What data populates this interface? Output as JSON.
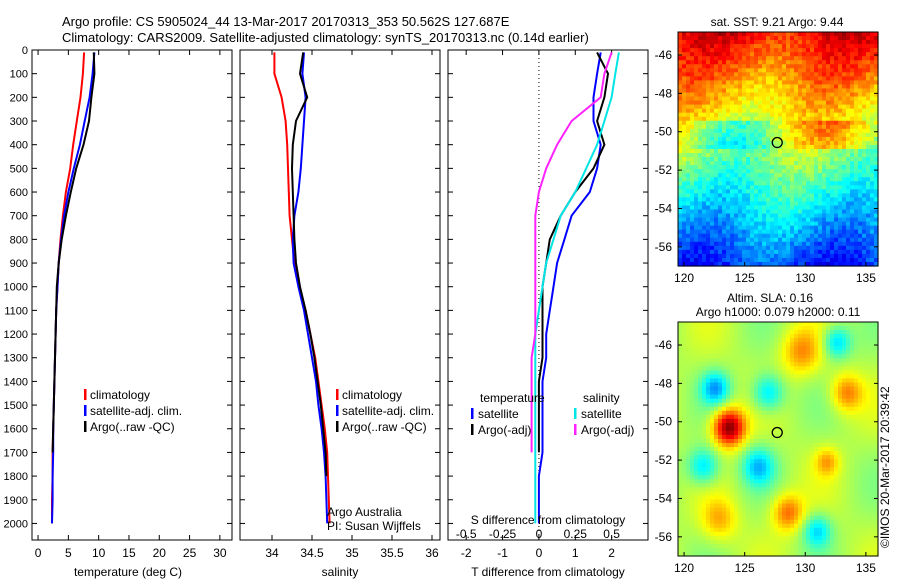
{
  "header": {
    "line1": "Argo profile: CS 5905024_44 13-Mar-2017 20170313_353 50.562S 127.687E",
    "line2": "Climatology: CARS2009. Satellite-adjusted climatology: synTS_20170313.nc (0.14d earlier)"
  },
  "colors": {
    "climatology": "#ff0000",
    "satellite": "#0000ff",
    "argo": "#000000",
    "satellite_salinity": "#00e5e5",
    "argo_salinity_adj": "#ff22ff",
    "map_marker": "#000000"
  },
  "chart_data": [
    {
      "type": "line",
      "id": "temperature",
      "xlabel": "temperature (deg C)",
      "ylabel": "",
      "xlim": [
        -1,
        32
      ],
      "ylim": [
        2070,
        0
      ],
      "xticks": [
        0,
        5,
        10,
        15,
        20,
        25,
        30
      ],
      "yticks": [
        0,
        100,
        200,
        300,
        400,
        500,
        600,
        700,
        800,
        900,
        1000,
        1100,
        1200,
        1300,
        1400,
        1500,
        1600,
        1700,
        1800,
        1900,
        2000
      ],
      "legend": [
        "climatology",
        "satellite-adj. clim.",
        "Argo(..raw -QC)"
      ],
      "series": [
        {
          "name": "climatology",
          "color": "red",
          "x": [
            7.6,
            7.4,
            7.0,
            6.4,
            5.8,
            5.3,
            4.6,
            4.1,
            3.7,
            3.4,
            3.2,
            3.0,
            2.9,
            2.8,
            2.7,
            2.6,
            2.5,
            2.4,
            2.4,
            2.3,
            2.3
          ],
          "y": [
            10,
            100,
            200,
            300,
            400,
            500,
            600,
            700,
            800,
            900,
            1000,
            1100,
            1200,
            1300,
            1400,
            1500,
            1600,
            1700,
            1800,
            1900,
            2000
          ]
        },
        {
          "name": "satellite-adj. clim.",
          "color": "blue",
          "x": [
            9.3,
            9.0,
            8.5,
            7.7,
            6.9,
            5.9,
            5.0,
            4.3,
            3.8,
            3.4,
            3.2,
            3.0,
            2.9,
            2.8,
            2.7,
            2.6,
            2.5,
            2.5,
            2.4,
            2.4,
            2.3
          ],
          "y": [
            10,
            100,
            200,
            300,
            400,
            500,
            600,
            700,
            800,
            900,
            1000,
            1100,
            1200,
            1300,
            1400,
            1500,
            1600,
            1700,
            1800,
            1900,
            2000
          ]
        },
        {
          "name": "Argo(..raw -QC)",
          "color": "black",
          "x": [
            9.2,
            9.3,
            8.8,
            8.4,
            7.5,
            6.3,
            5.4,
            4.6,
            3.9,
            3.4,
            3.1,
            3.0,
            2.9,
            2.8,
            2.7,
            2.6,
            2.5,
            2.4
          ],
          "y": [
            10,
            100,
            200,
            300,
            400,
            500,
            600,
            700,
            800,
            900,
            1000,
            1100,
            1200,
            1300,
            1400,
            1500,
            1600,
            1700
          ]
        }
      ]
    },
    {
      "type": "line",
      "id": "salinity",
      "xlabel": "salinity",
      "xlim": [
        33.6,
        36.1
      ],
      "ylim": [
        2070,
        0
      ],
      "xticks": [
        34,
        34.5,
        35,
        35.5,
        36
      ],
      "legend": [
        "climatology",
        "satellite-adj. clim.",
        "Argo(..raw -QC)"
      ],
      "annotation": [
        "Argo Australia",
        "PI: Susan Wijffels"
      ],
      "series": [
        {
          "name": "climatology",
          "color": "red",
          "x": [
            34.03,
            34.03,
            34.12,
            34.17,
            34.19,
            34.2,
            34.21,
            34.22,
            34.25,
            34.28,
            34.34,
            34.42,
            34.48,
            34.54,
            34.58,
            34.62,
            34.66,
            34.69,
            34.7,
            34.71,
            34.72
          ],
          "y": [
            10,
            100,
            200,
            300,
            400,
            500,
            600,
            700,
            800,
            900,
            1000,
            1100,
            1200,
            1300,
            1400,
            1500,
            1600,
            1700,
            1800,
            1900,
            2000
          ]
        },
        {
          "name": "satellite-adj. clim.",
          "color": "blue",
          "x": [
            34.4,
            34.38,
            34.42,
            34.4,
            34.38,
            34.36,
            34.33,
            34.28,
            34.26,
            34.27,
            34.33,
            34.4,
            34.45,
            34.5,
            34.55,
            34.58,
            34.62,
            34.65,
            34.67,
            34.68,
            34.69
          ],
          "y": [
            10,
            100,
            200,
            300,
            400,
            500,
            600,
            700,
            800,
            900,
            1000,
            1100,
            1200,
            1300,
            1400,
            1500,
            1600,
            1700,
            1800,
            1900,
            2000
          ]
        },
        {
          "name": "Argo(..raw -QC)",
          "color": "black",
          "x": [
            34.39,
            34.35,
            34.44,
            34.3,
            34.26,
            34.25,
            34.26,
            34.27,
            34.28,
            34.3,
            34.35,
            34.42,
            34.48,
            34.53,
            34.57,
            34.61,
            34.64,
            34.67,
            34.68
          ],
          "y": [
            10,
            100,
            200,
            300,
            400,
            500,
            600,
            700,
            800,
            900,
            1000,
            1100,
            1200,
            1300,
            1400,
            1500,
            1600,
            1700,
            1800
          ]
        }
      ]
    },
    {
      "type": "line",
      "id": "difference",
      "xlabel": "T difference from climatology",
      "xlabel_top": "S difference from climatology",
      "xlim": [
        -2.5,
        3.0
      ],
      "ylim": [
        2070,
        0
      ],
      "xticks": [
        -2,
        -1,
        0,
        1,
        2
      ],
      "s_xticks": [
        "-0.5",
        "-0.25",
        "0",
        "0.25",
        "0.5"
      ],
      "legend_temperature": [
        "temperature",
        "satellite",
        "Argo(-adj)"
      ],
      "legend_salinity": [
        "salinity",
        "satellite",
        "Argo(-adj)"
      ],
      "series": [
        {
          "name": "temperature satellite",
          "color": "blue",
          "x": [
            1.7,
            1.6,
            1.5,
            1.5,
            1.7,
            1.6,
            1.4,
            0.9,
            0.7,
            0.5,
            0.4,
            0.3,
            0.2,
            0.2,
            0.1,
            0.1,
            0.1,
            0.1,
            0.0,
            0.0,
            0.0
          ],
          "y": [
            10,
            100,
            200,
            300,
            400,
            500,
            600,
            700,
            800,
            900,
            1000,
            1100,
            1200,
            1300,
            1400,
            1500,
            1600,
            1700,
            1800,
            1900,
            2000
          ]
        },
        {
          "name": "temperature Argo(-adj)",
          "color": "black",
          "x": [
            1.6,
            1.9,
            1.8,
            1.6,
            1.8,
            1.5,
            1.0,
            0.6,
            0.3,
            0.2,
            0.1,
            0.1,
            0.1,
            0.1,
            0.0,
            0.0,
            0.0,
            0.0
          ],
          "y": [
            10,
            100,
            200,
            300,
            400,
            500,
            600,
            700,
            800,
            900,
            1000,
            1100,
            1200,
            1300,
            1400,
            1500,
            1600,
            1700
          ]
        },
        {
          "name": "salinity satellite",
          "color": "cyan",
          "x": [
            2.2,
            2.1,
            2.0,
            1.8,
            1.6,
            1.3,
            1.0,
            0.6,
            0.4,
            0.2,
            0.1,
            0.0,
            -0.1,
            -0.1,
            -0.1,
            -0.1,
            -0.1,
            -0.1,
            -0.1,
            -0.1,
            -0.1
          ],
          "y": [
            10,
            100,
            200,
            300,
            400,
            500,
            600,
            700,
            800,
            900,
            1000,
            1100,
            1200,
            1300,
            1400,
            1500,
            1600,
            1700,
            1800,
            1900,
            2000
          ]
        },
        {
          "name": "salinity Argo(-adj)",
          "color": "magenta",
          "x": [
            2.0,
            1.8,
            1.7,
            0.9,
            0.5,
            0.2,
            0.0,
            -0.1,
            -0.1,
            -0.1,
            -0.1,
            -0.1,
            -0.1,
            -0.2,
            -0.2,
            -0.2,
            -0.2,
            -0.2
          ],
          "y": [
            10,
            100,
            200,
            300,
            400,
            500,
            600,
            700,
            800,
            900,
            1000,
            1100,
            1200,
            1300,
            1400,
            1500,
            1600,
            1700
          ]
        }
      ]
    },
    {
      "type": "heatmap",
      "id": "sst_map",
      "title": "sat. SST: 9.21 Argo: 9.44",
      "xlim": [
        119.5,
        136
      ],
      "ylim": [
        -57,
        -44.8
      ],
      "xticks": [
        120,
        125,
        130,
        135
      ],
      "yticks": [
        -46,
        -48,
        -50,
        -52,
        -54,
        -56
      ],
      "marker": [
        127.687,
        -50.562
      ]
    },
    {
      "type": "heatmap",
      "id": "sla_map",
      "title": "Altim. SLA: 0.16",
      "subtitle": "Argo h1000: 0.079 h2000: 0.11",
      "xlim": [
        119.5,
        136
      ],
      "ylim": [
        -57,
        -44.8
      ],
      "xticks": [
        120,
        125,
        130,
        135
      ],
      "yticks": [
        -46,
        -48,
        -50,
        -52,
        -54,
        -56
      ],
      "marker": [
        127.687,
        -50.562
      ]
    }
  ],
  "footer": {
    "watermark": "©IMOS 20-Mar-2017 20:39:42"
  }
}
